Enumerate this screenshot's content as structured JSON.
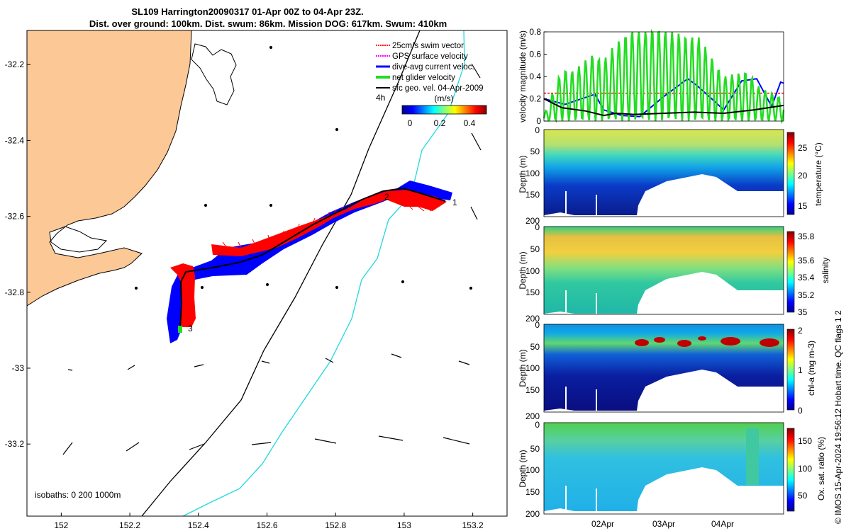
{
  "title": {
    "line1": "SL109 Harrington20090317 01-Apr 00Z to 04-Apr 23Z.",
    "line2": "Dist. over ground: 100km. Dist. swum: 86km. Mission DOG: 617km. Swum: 410km"
  },
  "colors": {
    "land": "#fbc896",
    "swim": "#ff0000",
    "gps": "#ff00ff",
    "current": "#0000ff",
    "net": "#22dd22",
    "geo": "#000000",
    "isobath200": "#000000",
    "isobath1000": "#20d8e0"
  },
  "map": {
    "lon_ticks": [
      "152",
      "152.2",
      "152.4",
      "152.6",
      "152.8",
      "153",
      "153.2"
    ],
    "lat_ticks": [
      "-32.2",
      "-32.4",
      "-32.6",
      "-32.8",
      "-33",
      "-33.2"
    ],
    "lon_range": [
      151.9,
      153.3
    ],
    "lat_range": [
      -33.39,
      -32.11
    ],
    "legend": [
      "25cm/s swim vector",
      "GPS surface velocity",
      "dive-avg current veloc.",
      "net glider velocity",
      "sfc geo. vel. 04-Apr-2009"
    ],
    "time_step_label": "4h",
    "colorbar_label": "(m/s)",
    "colorbar_ticks": [
      "0",
      "0.2",
      "0.4"
    ],
    "track_labels": [
      "1",
      "2",
      "3"
    ],
    "isobaths_label": "isobaths: 0   200  1000m"
  },
  "chart_data": [
    {
      "type": "line",
      "title": "",
      "ylabel": "velocity magnitude (m/s)",
      "ylim": [
        0,
        0.8
      ],
      "yticks": [
        "0",
        "0.2",
        "0.4",
        "0.6",
        "0.8"
      ],
      "xlim_days": [
        0,
        4
      ],
      "series": [
        {
          "name": "swim speed",
          "x": [
            0,
            4
          ],
          "values": [
            0.25,
            0.25
          ]
        },
        {
          "name": "dive-avg current",
          "x": [
            0,
            0.35,
            0.85,
            1.0,
            1.3,
            1.6,
            2.0,
            2.4,
            2.55,
            2.8,
            3.0,
            3.3,
            3.55,
            3.8,
            3.95,
            4.0
          ],
          "values": [
            0.2,
            0.15,
            0.24,
            0.1,
            0.05,
            0.04,
            0.22,
            0.38,
            0.32,
            0.2,
            0.1,
            0.36,
            0.38,
            0.13,
            0.35,
            0.34
          ]
        },
        {
          "name": "net glider velocity",
          "x": [
            0,
            0.3,
            0.5,
            0.8,
            1.0,
            1.2,
            1.5,
            2.0,
            2.3,
            2.6,
            3.0,
            3.4,
            3.6,
            4.0
          ],
          "values": [
            0.05,
            0.47,
            0.45,
            0.6,
            0.55,
            0.7,
            0.85,
            0.85,
            0.78,
            0.75,
            0.4,
            0.45,
            0.3,
            0.2
          ]
        },
        {
          "name": "sfc geo. vel.",
          "x": [
            0,
            0.3,
            0.7,
            1.0,
            1.2,
            1.5,
            2.0,
            2.5,
            3.0,
            3.5,
            4.0
          ],
          "values": [
            0.2,
            0.12,
            0.09,
            0.05,
            0.07,
            0.06,
            0.07,
            0.08,
            0.07,
            0.1,
            0.14
          ]
        }
      ]
    },
    {
      "type": "heatmap",
      "ylabel": "Depth (m)",
      "clabel": "temperature (°C)",
      "ylim": [
        200,
        0
      ],
      "yticks": [
        "0",
        "50",
        "100",
        "150",
        "200"
      ],
      "clim": [
        12,
        28
      ],
      "cticks": [
        "15",
        "20",
        "25"
      ],
      "surface_value": 24,
      "deep_value": 14
    },
    {
      "type": "heatmap",
      "ylabel": "Depth (m)",
      "clabel": "salinity",
      "ylim": [
        200,
        0
      ],
      "yticks": [
        "0",
        "50",
        "100",
        "150",
        "200"
      ],
      "clim": [
        34.95,
        35.85
      ],
      "cticks": [
        "35",
        "35.2",
        "35.4",
        "35.6",
        "35.8"
      ],
      "surface_value": 35.4,
      "core_value": 35.6,
      "deep_value": 35.1
    },
    {
      "type": "heatmap",
      "ylabel": "Depth (m)",
      "clabel": "chl-a (mg m-3)",
      "ylim": [
        200,
        0
      ],
      "yticks": [
        "0",
        "50",
        "100",
        "150",
        "200"
      ],
      "clim": [
        0,
        2
      ],
      "cticks": [
        "0",
        "1",
        "2"
      ],
      "surface_value": 0.6,
      "max_value": 2,
      "deep_value": 0.1
    },
    {
      "type": "heatmap",
      "ylabel": "Depth (m)",
      "clabel": "Ox. sat. ratio (%)",
      "ylim": [
        200,
        0
      ],
      "yticks": [
        "0",
        "50",
        "100",
        "150",
        "200"
      ],
      "clim": [
        20,
        175
      ],
      "cticks": [
        "50",
        "100",
        "150"
      ],
      "surface_value": 115,
      "deep_value": 85,
      "xticks": [
        "02Apr",
        "03Apr",
        "04Apr"
      ]
    }
  ],
  "side_note": "© IMOS 15-Apr-2024 19:56:12 Hobart time. QC flags 1  2"
}
